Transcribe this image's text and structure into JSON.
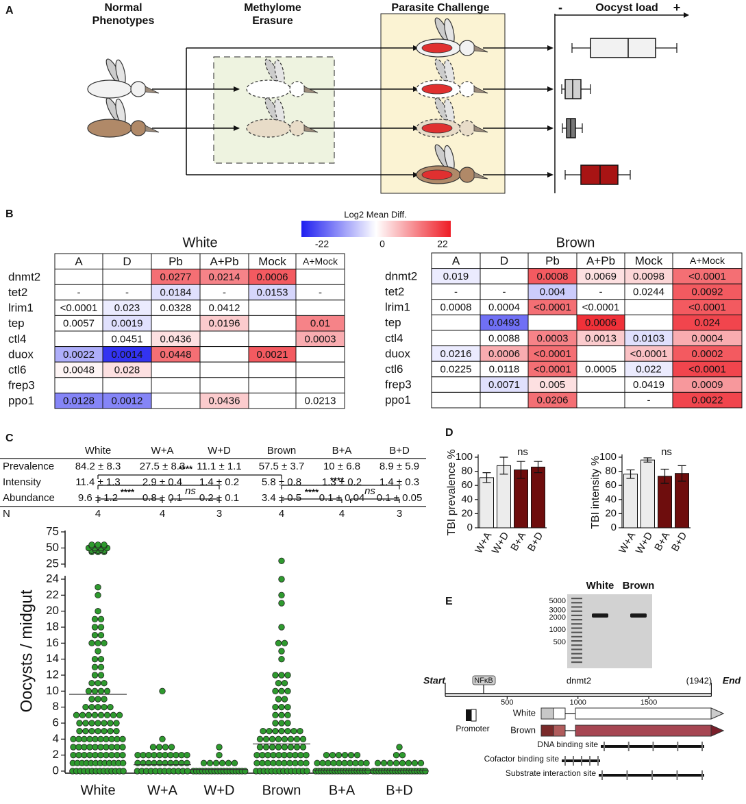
{
  "panels": {
    "a": "A",
    "b": "B",
    "c": "C",
    "d": "D",
    "e": "E"
  },
  "panel_a": {
    "stages": [
      [
        "Normal",
        "Phenotypes"
      ],
      [
        "Methylome",
        "Erasure"
      ],
      [
        "Parasite Challenge"
      ]
    ],
    "oocyst_axis": {
      "minus": "-",
      "label": "Oocyst load",
      "plus": "+"
    }
  },
  "heatmap": {
    "title": "Log2 Mean Diff.",
    "colorbar": {
      "lim": [
        -22,
        22
      ],
      "ticks": [
        -22,
        0,
        22
      ],
      "low_color": "#1f1ff0",
      "mid_color": "#ffffff",
      "high_color": "#ee1c25"
    },
    "tables": [
      {
        "title": "White",
        "columns": [
          "A",
          "D",
          "Pb",
          "A+Pb",
          "Mock",
          "A+Mock"
        ],
        "rows": [
          {
            "label": "dnmt2",
            "cells": [
              null,
              null,
              "0.0277",
              "0.0214",
              "0.0006",
              null
            ]
          },
          {
            "label": "tet2",
            "cells": [
              "-",
              "-",
              "0.0184",
              "-",
              "0.0153",
              "-"
            ]
          },
          {
            "label": "lrim1",
            "cells": [
              "<0.0001",
              "0.023",
              "0.0328",
              "0.0412",
              null,
              null
            ]
          },
          {
            "label": "tep",
            "cells": [
              "0.0057",
              "0.0019",
              null,
              "0.0196",
              null,
              "0.01"
            ]
          },
          {
            "label": "ctl4",
            "cells": [
              null,
              "0.0451",
              "0.0436",
              null,
              null,
              "0.0003"
            ]
          },
          {
            "label": "duox",
            "cells": [
              "0.0022",
              "0.0014",
              "0.0448",
              null,
              "0.0021",
              null
            ]
          },
          {
            "label": "ctl6",
            "cells": [
              "0.0048",
              "0.028",
              null,
              null,
              null,
              null
            ]
          },
          {
            "label": "frep3",
            "cells": [
              null,
              null,
              null,
              null,
              null,
              null
            ]
          },
          {
            "label": "ppo1",
            "cells": [
              "0.0128",
              "0.0012",
              null,
              "0.0436",
              null,
              "0.0213"
            ]
          }
        ],
        "shade": [
          [
            null,
            null,
            14,
            12,
            16,
            null
          ],
          [
            null,
            null,
            -3,
            null,
            -4,
            null
          ],
          [
            0,
            -2,
            0,
            0,
            null,
            null
          ],
          [
            0,
            -3,
            null,
            5,
            null,
            12
          ],
          [
            null,
            0,
            3,
            null,
            null,
            8
          ],
          [
            -8,
            -20,
            14,
            null,
            16,
            null
          ],
          [
            1,
            3,
            null,
            null,
            null,
            null
          ],
          [
            null,
            null,
            null,
            null,
            null,
            null
          ],
          [
            -12,
            -12,
            null,
            5,
            null,
            0
          ]
        ]
      },
      {
        "title": "Brown",
        "columns": [
          "A",
          "D",
          "Pb",
          "A+Pb",
          "Mock",
          "A+Mock"
        ],
        "rows": [
          {
            "label": "dnmt2",
            "cells": [
              "0.019",
              null,
              "0.0008",
              "0.0069",
              "0.0098",
              "<0.0001"
            ]
          },
          {
            "label": "tet2",
            "cells": [
              "-",
              "-",
              "0.004",
              "-",
              "0.0244",
              "0.0092"
            ]
          },
          {
            "label": "lrim1",
            "cells": [
              "0.0008",
              "0.0004",
              "<0.0001",
              "<0.0001",
              null,
              "<0.0001"
            ]
          },
          {
            "label": "tep",
            "cells": [
              null,
              "0.0493",
              null,
              "0.0006",
              null,
              "0.024"
            ]
          },
          {
            "label": "ctl4",
            "cells": [
              null,
              "0.0088",
              "0.0003",
              "0.0013",
              "0.0103",
              "0.0004"
            ]
          },
          {
            "label": "duox",
            "cells": [
              "0.0216",
              "0.0006",
              "<0.0001",
              null,
              "<0.0001",
              "0.0002"
            ]
          },
          {
            "label": "ctl6",
            "cells": [
              "0.0225",
              "0.0118",
              "<0.0001",
              "0.0005",
              "0.022",
              "<0.0001"
            ]
          },
          {
            "label": "frep3",
            "cells": [
              null,
              "0.0071",
              "0.005",
              null,
              "0.0419",
              "0.0009"
            ]
          },
          {
            "label": "ppo1",
            "cells": [
              null,
              null,
              "0.0206",
              null,
              "-",
              "0.0022"
            ]
          }
        ],
        "shade": [
          [
            -2,
            null,
            16,
            3,
            4,
            14
          ],
          [
            null,
            null,
            -5,
            null,
            0,
            16
          ],
          [
            0,
            0,
            14,
            0,
            null,
            16
          ],
          [
            null,
            -14,
            null,
            20,
            null,
            18
          ],
          [
            null,
            0,
            12,
            5,
            -3,
            8
          ],
          [
            -2,
            8,
            14,
            null,
            6,
            16
          ],
          [
            0,
            0,
            14,
            0,
            -2,
            18
          ],
          [
            null,
            -3,
            3,
            null,
            0,
            10
          ],
          [
            null,
            null,
            14,
            null,
            null,
            18
          ]
        ]
      }
    ]
  },
  "summary_table": {
    "columns": [
      "White",
      "W+A",
      "W+D",
      "Brown",
      "B+A",
      "B+D"
    ],
    "rows": [
      {
        "label": "Prevalence",
        "cells": [
          "84.2 ± 8.3",
          "27.5 ± 8.3",
          "11.1 ± 1.1",
          "57.5 ± 3.7",
          "10 ± 6.8",
          "8.9 ± 5.9"
        ]
      },
      {
        "label": "Intensity",
        "cells": [
          "11.4 ± 1.3",
          "2.9 ± 0.4",
          "1.4 ± 0.2",
          "5.8 ± 0.8",
          "1.3 ± 0.2",
          "1.4 ± 0.3"
        ]
      },
      {
        "label": "Abundance",
        "cells": [
          "9.6 ± 1.2",
          "0.8 ± 0.1",
          "0.2 ± 0.1",
          "3.4 ± 0.5",
          "0.1 ± 0.04",
          "0.1 ± 0.05"
        ]
      },
      {
        "label": "N",
        "cells": [
          "4",
          "4",
          "3",
          "4",
          "4",
          "3"
        ]
      }
    ]
  },
  "chart_data": [
    {
      "type": "dot",
      "y_label": "Oocysts / midgut",
      "categories": [
        "White",
        "W+A",
        "W+D",
        "Brown",
        "B+A",
        "B+D"
      ],
      "values": [
        [
          0,
          0,
          0,
          0,
          0,
          0,
          0,
          0,
          0,
          0,
          0,
          0,
          0,
          0,
          1,
          1,
          1,
          1,
          1,
          1,
          1,
          1,
          1,
          1,
          1,
          1,
          2,
          2,
          2,
          2,
          2,
          2,
          2,
          2,
          2,
          2,
          3,
          3,
          3,
          3,
          3,
          3,
          3,
          3,
          3,
          3,
          4,
          4,
          4,
          4,
          4,
          4,
          4,
          4,
          4,
          4,
          5,
          5,
          5,
          5,
          5,
          5,
          5,
          6,
          6,
          6,
          6,
          6,
          6,
          6,
          7,
          7,
          7,
          7,
          7,
          7,
          7,
          7,
          8,
          8,
          8,
          8,
          8,
          9,
          9,
          9,
          10,
          10,
          10,
          10,
          11,
          11,
          11,
          12,
          12,
          13,
          13,
          14,
          14,
          15,
          16,
          16,
          16,
          17,
          17,
          18,
          18,
          19,
          19,
          20,
          22,
          23,
          44,
          44,
          44,
          46,
          46,
          46,
          48,
          48,
          50,
          50,
          50,
          50,
          53,
          53,
          53,
          55,
          55,
          55
        ],
        [
          0,
          0,
          0,
          0,
          0,
          0,
          0,
          0,
          0,
          0,
          0,
          0,
          1,
          1,
          1,
          1,
          1,
          1,
          1,
          1,
          1,
          1,
          2,
          2,
          2,
          2,
          2,
          2,
          2,
          2,
          2,
          2,
          3,
          3,
          3,
          3,
          4,
          10
        ],
        [
          0,
          0,
          0,
          0,
          0,
          0,
          0,
          0,
          0,
          0,
          0,
          0,
          0,
          0,
          0,
          0,
          0,
          0,
          1,
          1,
          1,
          1,
          1,
          1,
          2,
          3
        ],
        [
          0,
          0,
          0,
          0,
          0,
          0,
          0,
          0,
          0,
          0,
          0,
          0,
          0,
          0,
          1,
          1,
          1,
          1,
          1,
          1,
          1,
          1,
          1,
          1,
          2,
          2,
          2,
          2,
          2,
          2,
          2,
          2,
          2,
          2,
          3,
          3,
          3,
          3,
          3,
          3,
          3,
          3,
          4,
          4,
          4,
          4,
          4,
          4,
          4,
          4,
          5,
          5,
          5,
          5,
          5,
          5,
          5,
          6,
          6,
          6,
          7,
          7,
          7,
          8,
          8,
          8,
          9,
          9,
          10,
          10,
          10,
          11,
          11,
          12,
          12,
          12,
          14,
          15,
          16,
          16,
          18,
          21,
          22,
          24,
          30
        ],
        [
          0,
          0,
          0,
          0,
          0,
          0,
          0,
          0,
          0,
          0,
          0,
          0,
          0,
          0,
          0,
          0,
          0,
          0,
          0,
          0,
          1,
          1,
          1,
          1,
          1,
          1,
          1,
          1,
          1,
          1,
          2,
          2,
          2,
          2,
          2,
          2
        ],
        [
          0,
          0,
          0,
          0,
          0,
          0,
          0,
          0,
          0,
          0,
          0,
          0,
          0,
          0,
          0,
          0,
          0,
          0,
          0,
          0,
          1,
          1,
          1,
          1,
          1,
          1,
          1,
          1,
          2,
          2,
          3
        ]
      ],
      "means": [
        9.6,
        0.8,
        0.2,
        3.4,
        0.1,
        0.1
      ],
      "color": "#2e9a2e",
      "ylim": [
        0,
        75
      ],
      "axis_break": [
        24,
        25
      ],
      "yticks": [
        0,
        2,
        4,
        6,
        8,
        10,
        12,
        14,
        16,
        18,
        20,
        22,
        24,
        25,
        50,
        75
      ],
      "significance": [
        "****",
        "****",
        "ns",
        "****",
        "****",
        "ns"
      ]
    },
    {
      "type": "bar",
      "y_label": "TBI prevalence %",
      "categories": [
        "W+A",
        "W+D",
        "B+A",
        "B+D"
      ],
      "values": [
        71,
        88,
        82,
        86
      ],
      "errors": [
        7,
        12,
        12,
        8
      ],
      "colors": [
        "#ececec",
        "#ececec",
        "#6e0d0d",
        "#6e0d0d"
      ],
      "ylim": [
        0,
        100
      ],
      "yticks": [
        0,
        20,
        40,
        60,
        80,
        100
      ],
      "annotation": "ns"
    },
    {
      "type": "bar",
      "y_label": "TBI intensity %",
      "categories": [
        "W+A",
        "W+D",
        "B+A",
        "B+D"
      ],
      "values": [
        76,
        96,
        73,
        77
      ],
      "errors": [
        6,
        3,
        10,
        11
      ],
      "colors": [
        "#ececec",
        "#ececec",
        "#6e0d0d",
        "#6e0d0d"
      ],
      "ylim": [
        0,
        100
      ],
      "yticks": [
        0,
        20,
        40,
        60,
        80,
        100
      ],
      "annotation": "ns"
    }
  ],
  "gel": {
    "lanes": [
      "White",
      "Brown"
    ],
    "ladder": [
      5000,
      3000,
      2000,
      1000,
      500
    ]
  },
  "gene_map": {
    "start": "Start",
    "end": "End",
    "motif": "NFκB",
    "gene": "dnmt2",
    "length": {
      "value": 1942,
      "label": "(1942)"
    },
    "ticks": [
      500,
      1000,
      1500
    ],
    "promoter": "Promoter",
    "alleles": [
      "White",
      "Brown"
    ],
    "sites": [
      "DNA binding site",
      "Cofactor binding site",
      "Substrate interaction site"
    ]
  }
}
